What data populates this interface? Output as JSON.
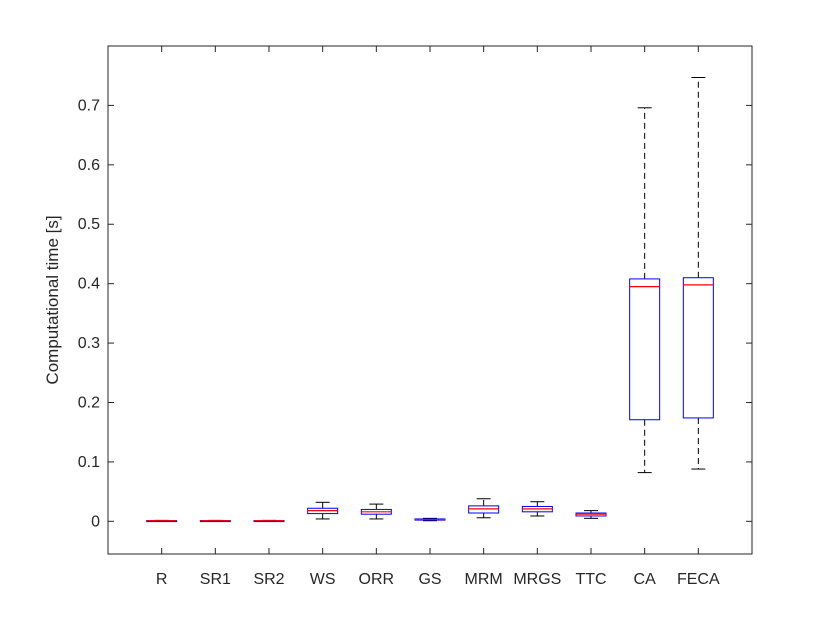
{
  "chart_data": {
    "type": "box",
    "ylabel": "Computational time [s]",
    "xlabel": "",
    "title": "",
    "ylim": [
      -0.055,
      0.8
    ],
    "yticks": [
      0,
      0.1,
      0.2,
      0.3,
      0.4,
      0.5,
      0.6,
      0.7
    ],
    "ytick_labels": [
      "0",
      "0.1",
      "0.2",
      "0.3",
      "0.4",
      "0.5",
      "0.6",
      "0.7"
    ],
    "categories": [
      "R",
      "SR1",
      "SR2",
      "WS",
      "ORR",
      "GS",
      "MRM",
      "MRGS",
      "TTC",
      "CA",
      "FECA"
    ],
    "boxes": [
      {
        "whisker_low": 0.0005,
        "q1": 0.0008,
        "median": 0.001,
        "q3": 0.0012,
        "whisker_high": 0.0016
      },
      {
        "whisker_low": 0.0005,
        "q1": 0.0008,
        "median": 0.001,
        "q3": 0.0012,
        "whisker_high": 0.0016
      },
      {
        "whisker_low": 0.0005,
        "q1": 0.0008,
        "median": 0.001,
        "q3": 0.0012,
        "whisker_high": 0.0016
      },
      {
        "whisker_low": 0.004,
        "q1": 0.013,
        "median": 0.018,
        "q3": 0.022,
        "whisker_high": 0.032
      },
      {
        "whisker_low": 0.004,
        "q1": 0.012,
        "median": 0.016,
        "q3": 0.02,
        "whisker_high": 0.029
      },
      {
        "whisker_low": 0.001,
        "q1": 0.002,
        "median": 0.003,
        "q3": 0.004,
        "whisker_high": 0.005
      },
      {
        "whisker_low": 0.006,
        "q1": 0.014,
        "median": 0.021,
        "q3": 0.026,
        "whisker_high": 0.038
      },
      {
        "whisker_low": 0.009,
        "q1": 0.016,
        "median": 0.021,
        "q3": 0.025,
        "whisker_high": 0.033
      },
      {
        "whisker_low": 0.005,
        "q1": 0.009,
        "median": 0.012,
        "q3": 0.014,
        "whisker_high": 0.018
      },
      {
        "whisker_low": 0.082,
        "q1": 0.171,
        "median": 0.395,
        "q3": 0.408,
        "whisker_high": 0.696
      },
      {
        "whisker_low": 0.088,
        "q1": 0.174,
        "median": 0.398,
        "q3": 0.41,
        "whisker_high": 0.747
      }
    ],
    "colors": {
      "box": "#0000ff",
      "median": "#ff0000",
      "whisker": "#000000",
      "axes": "#262626"
    },
    "grid": false
  }
}
